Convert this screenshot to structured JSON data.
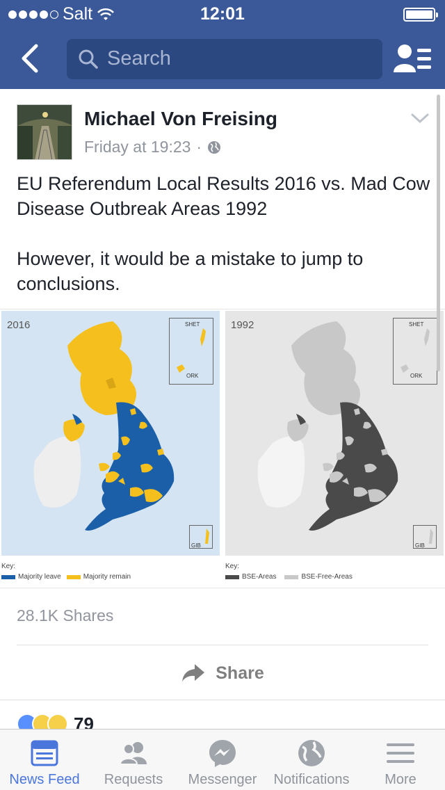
{
  "status_bar": {
    "carrier": "Salt",
    "time": "12:01"
  },
  "nav": {
    "search_placeholder": "Search"
  },
  "post": {
    "author": "Michael Von Freising",
    "timestamp": "Friday at 19:23",
    "separator": "·",
    "text": [
      "EU Referendum Local Results 2016 vs. Mad Cow Disease Outbreak Areas 1992",
      "However, it would be a mistake to jump to conclusions."
    ],
    "image": {
      "left": {
        "year": "2016",
        "inset_top": "SHET",
        "inset_bottom": "ORK",
        "inset_gib": "GIB",
        "key_title": "Key:",
        "legend": [
          {
            "label": "Majority leave",
            "color": "#1a5fa8"
          },
          {
            "label": "Majority remain",
            "color": "#f5c01d"
          }
        ]
      },
      "right": {
        "year": "1992",
        "inset_top": "SHET",
        "inset_bottom": "ORK",
        "inset_gib": "GIB",
        "key_title": "Key:",
        "legend": [
          {
            "label": "BSE-Areas",
            "color": "#4a4a4a"
          },
          {
            "label": "BSE-Free-Areas",
            "color": "#c8c8c8"
          }
        ]
      }
    },
    "shares": "28.1K Shares",
    "share_label": "Share",
    "reaction_count": "79"
  },
  "tabs": [
    {
      "label": "News Feed",
      "icon": "news-feed-icon",
      "active": true
    },
    {
      "label": "Requests",
      "icon": "requests-icon",
      "active": false
    },
    {
      "label": "Messenger",
      "icon": "messenger-icon",
      "active": false
    },
    {
      "label": "Notifications",
      "icon": "notifications-icon",
      "active": false
    },
    {
      "label": "More",
      "icon": "more-icon",
      "active": false
    }
  ],
  "colors": {
    "brand": "#3b5998",
    "active_tab": "#4a76dc"
  }
}
